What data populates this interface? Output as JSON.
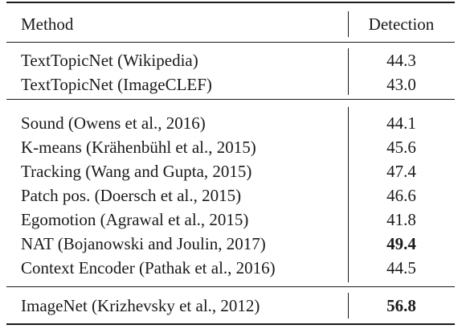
{
  "header": {
    "method": "Method",
    "detection": "Detection"
  },
  "groups": [
    {
      "rows": [
        {
          "method": "TextTopicNet (Wikipedia)",
          "detection": "44.3",
          "bold": false
        },
        {
          "method": "TextTopicNet (ImageCLEF)",
          "detection": "43.0",
          "bold": false
        }
      ]
    },
    {
      "rows": [
        {
          "method": "Sound  (Owens et al., 2016)",
          "detection": "44.1",
          "bold": false
        },
        {
          "method": "K-means (Krähenbühl et al., 2015)",
          "detection": "45.6",
          "bold": false
        },
        {
          "method": "Tracking (Wang and Gupta, 2015)",
          "detection": "47.4",
          "bold": false
        },
        {
          "method": "Patch pos. (Doersch et al., 2015)",
          "detection": "46.6",
          "bold": false
        },
        {
          "method": "Egomotion (Agrawal et al., 2015)",
          "detection": "41.8",
          "bold": false
        },
        {
          "method": "NAT (Bojanowski and Joulin, 2017)",
          "detection": "49.4",
          "bold": true
        },
        {
          "method": "Context Encoder (Pathak et al., 2016)",
          "detection": "44.5",
          "bold": false
        }
      ]
    },
    {
      "rows": [
        {
          "method": "ImageNet (Krizhevsky et al., 2012)",
          "detection": "56.8",
          "bold": true
        }
      ]
    }
  ]
}
